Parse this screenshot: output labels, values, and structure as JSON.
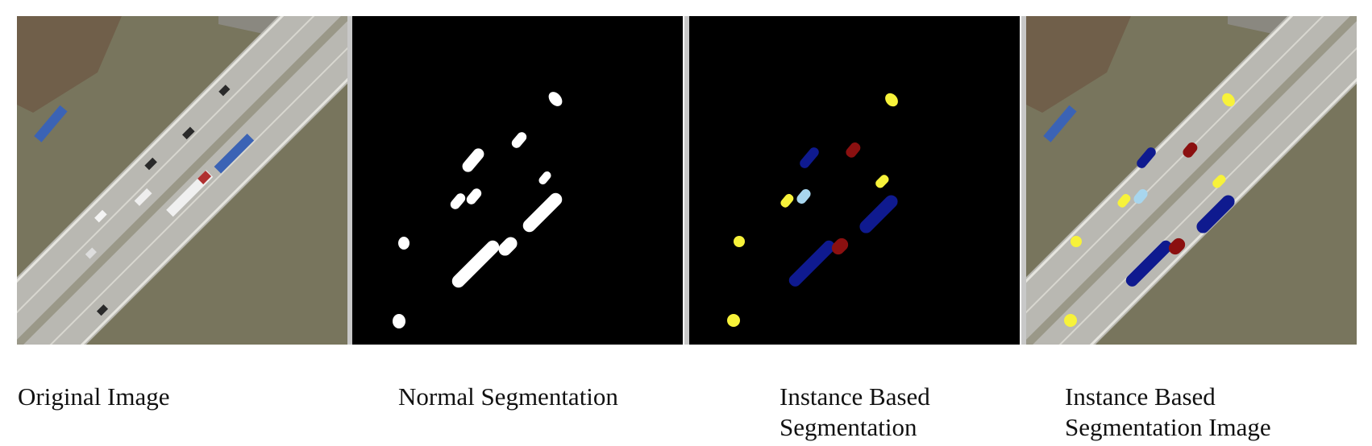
{
  "captions": {
    "original": "Original Image",
    "normal": "Normal Segmentation",
    "instance_line1": "Instance Based",
    "instance_line2": "Segmentation",
    "instance_image_line1": "Instance Based",
    "instance_image_line2": "Segmentation Image"
  },
  "colors": {
    "ground": "#7d7a62",
    "road": "#b9b8b2",
    "lane_line": "#e6e5df",
    "mask_background": "#000000",
    "mask_foreground": "#ffffff",
    "instance_yellow": "#f7f23a",
    "instance_navy": "#0f1a8f",
    "instance_maroon": "#8b1010",
    "instance_lightblue": "#a8d6ee",
    "separator": "#c8c8c8"
  }
}
